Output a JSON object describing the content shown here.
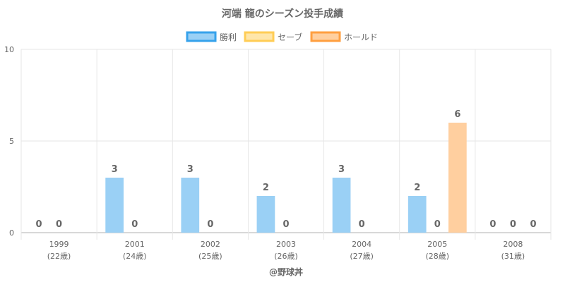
{
  "chart_data": {
    "type": "bar",
    "title": "河端 龍のシーズン投手成績",
    "categories": [
      "1999",
      "2001",
      "2002",
      "2003",
      "2004",
      "2005",
      "2008"
    ],
    "category_sublabels": [
      "(22歳)",
      "(24歳)",
      "(25歳)",
      "(26歳)",
      "(27歳)",
      "(28歳)",
      "(31歳)"
    ],
    "series": [
      {
        "name": "勝利",
        "values": [
          0,
          3,
          3,
          2,
          3,
          2,
          0
        ],
        "color": "#9ad0f5",
        "border": "#36a2eb"
      },
      {
        "name": "セーブ",
        "values": [
          0,
          0,
          0,
          0,
          0,
          0,
          0
        ],
        "color": "#ffe6aa",
        "border": "#ffcd56"
      },
      {
        "name": "ホールド",
        "values": [
          null,
          null,
          null,
          null,
          null,
          6,
          0
        ],
        "color": "#ffcf9f",
        "border": "#ff9f40"
      }
    ],
    "ylim": [
      0,
      10
    ],
    "yticks": [
      0,
      5,
      10
    ],
    "grid": true,
    "legend_position": "top",
    "credit": "@野球丼"
  }
}
